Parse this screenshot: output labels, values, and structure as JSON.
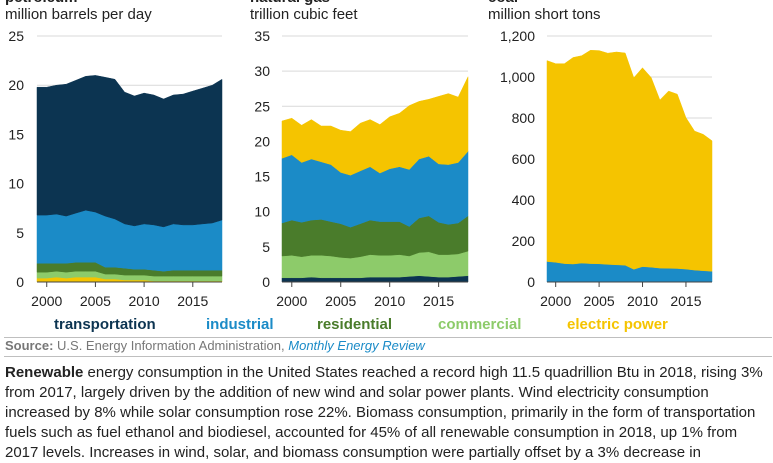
{
  "chart_data": [
    {
      "type": "area",
      "title": "petroleum",
      "subtitle": "million barrels per day",
      "x": [
        1999,
        2000,
        2001,
        2002,
        2003,
        2004,
        2005,
        2006,
        2007,
        2008,
        2009,
        2010,
        2011,
        2012,
        2013,
        2014,
        2015,
        2016,
        2017,
        2018
      ],
      "xticks": [
        2000,
        2005,
        2010,
        2015
      ],
      "ylim": [
        0,
        25
      ],
      "yticks": [
        0,
        5,
        10,
        15,
        20,
        25
      ],
      "ytick_labels": [
        "0",
        "5",
        "10",
        "15",
        "20",
        "25"
      ],
      "series": [
        {
          "name": "electric power",
          "color": "#f5c400",
          "values": [
            0.4,
            0.4,
            0.5,
            0.4,
            0.5,
            0.5,
            0.5,
            0.3,
            0.3,
            0.2,
            0.2,
            0.2,
            0.1,
            0.1,
            0.1,
            0.1,
            0.1,
            0.1,
            0.1,
            0.1
          ]
        },
        {
          "name": "commercial",
          "color": "#8dcb6a",
          "values": [
            0.6,
            0.6,
            0.6,
            0.6,
            0.6,
            0.6,
            0.6,
            0.5,
            0.5,
            0.5,
            0.5,
            0.5,
            0.5,
            0.5,
            0.5,
            0.5,
            0.5,
            0.5,
            0.5,
            0.5
          ]
        },
        {
          "name": "residential",
          "color": "#4a7c2b",
          "values": [
            0.9,
            0.9,
            0.8,
            0.9,
            0.9,
            0.9,
            0.9,
            0.7,
            0.7,
            0.7,
            0.6,
            0.6,
            0.6,
            0.5,
            0.6,
            0.6,
            0.6,
            0.6,
            0.6,
            0.6
          ]
        },
        {
          "name": "industrial",
          "color": "#1b8bc7",
          "values": [
            4.9,
            4.9,
            5.0,
            4.8,
            5.0,
            5.3,
            5.1,
            5.2,
            4.9,
            4.5,
            4.4,
            4.6,
            4.6,
            4.5,
            4.7,
            4.6,
            4.6,
            4.7,
            4.8,
            5.1
          ]
        },
        {
          "name": "transportation",
          "color": "#0c3451",
          "values": [
            13.0,
            13.0,
            13.1,
            13.4,
            13.5,
            13.6,
            13.9,
            14.1,
            14.2,
            13.4,
            13.2,
            13.3,
            13.2,
            13.0,
            13.1,
            13.3,
            13.6,
            13.8,
            14.0,
            14.3
          ]
        }
      ]
    },
    {
      "type": "area",
      "title": "natural gas",
      "subtitle": "trillion cubic feet",
      "x": [
        1999,
        2000,
        2001,
        2002,
        2003,
        2004,
        2005,
        2006,
        2007,
        2008,
        2009,
        2010,
        2011,
        2012,
        2013,
        2014,
        2015,
        2016,
        2017,
        2018
      ],
      "xticks": [
        2000,
        2005,
        2010,
        2015
      ],
      "ylim": [
        0,
        35
      ],
      "yticks": [
        0,
        5,
        10,
        15,
        20,
        25,
        30,
        35
      ],
      "ytick_labels": [
        "0",
        "5",
        "10",
        "15",
        "20",
        "25",
        "30",
        "35"
      ],
      "series": [
        {
          "name": "transportation",
          "color": "#0c3451",
          "values": [
            0.6,
            0.6,
            0.6,
            0.7,
            0.6,
            0.6,
            0.6,
            0.6,
            0.6,
            0.7,
            0.7,
            0.7,
            0.7,
            0.8,
            0.9,
            0.8,
            0.7,
            0.7,
            0.8,
            0.9
          ]
        },
        {
          "name": "commercial",
          "color": "#8dcb6a",
          "values": [
            3.1,
            3.2,
            3.0,
            3.1,
            3.2,
            3.1,
            2.9,
            2.8,
            3.0,
            3.2,
            3.1,
            3.1,
            3.2,
            2.9,
            3.3,
            3.5,
            3.2,
            3.2,
            3.2,
            3.5
          ]
        },
        {
          "name": "residential",
          "color": "#4a7c2b",
          "values": [
            4.7,
            5.0,
            4.9,
            5.0,
            5.1,
            4.9,
            4.8,
            4.4,
            4.7,
            4.9,
            4.8,
            4.8,
            4.7,
            4.2,
            4.9,
            5.1,
            4.6,
            4.3,
            4.4,
            5.0
          ]
        },
        {
          "name": "industrial",
          "color": "#1b8bc7",
          "values": [
            9.2,
            9.3,
            8.5,
            8.7,
            8.2,
            8.1,
            7.3,
            7.4,
            7.5,
            7.6,
            6.9,
            7.5,
            7.8,
            8.1,
            8.4,
            8.5,
            8.3,
            8.5,
            8.6,
            9.2
          ]
        },
        {
          "name": "electric power",
          "color": "#f5c400",
          "values": [
            5.3,
            5.2,
            5.3,
            5.6,
            5.1,
            5.5,
            6.0,
            6.2,
            6.8,
            6.7,
            6.9,
            7.4,
            7.6,
            9.1,
            8.2,
            8.1,
            9.6,
            10.1,
            9.3,
            10.6
          ]
        }
      ]
    },
    {
      "type": "area",
      "title": "coal",
      "subtitle": "million short tons",
      "x": [
        1999,
        2000,
        2001,
        2002,
        2003,
        2004,
        2005,
        2006,
        2007,
        2008,
        2009,
        2010,
        2011,
        2012,
        2013,
        2014,
        2015,
        2016,
        2017,
        2018
      ],
      "xticks": [
        2000,
        2005,
        2010,
        2015
      ],
      "ylim": [
        0,
        1200
      ],
      "yticks": [
        0,
        200,
        400,
        600,
        800,
        1000,
        1200
      ],
      "ytick_labels": [
        "0",
        "200",
        "400",
        "600",
        "800",
        "1,000",
        "1,200"
      ],
      "series": [
        {
          "name": "industrial",
          "color": "#1b8bc7",
          "values": [
            100,
            96,
            90,
            88,
            92,
            90,
            89,
            86,
            84,
            82,
            62,
            75,
            72,
            68,
            67,
            66,
            63,
            58,
            55,
            52
          ]
        },
        {
          "name": "electric power",
          "color": "#f5c400",
          "values": [
            980,
            969,
            975,
            1007,
            1012,
            1040,
            1040,
            1030,
            1038,
            1035,
            934,
            970,
            925,
            820,
            864,
            850,
            739,
            678,
            665,
            637
          ]
        }
      ]
    }
  ],
  "legend": [
    {
      "label": "transportation",
      "color": "#0c3451"
    },
    {
      "label": "industrial",
      "color": "#1b8bc7"
    },
    {
      "label": "residential",
      "color": "#4a7c2b"
    },
    {
      "label": "commercial",
      "color": "#8dcb6a"
    },
    {
      "label": "electric power",
      "color": "#f5c400"
    }
  ],
  "source": {
    "label": "Source:",
    "agency": "U.S. Energy Information Administration,",
    "publication": "Monthly Energy Review"
  },
  "body": {
    "lead": "Renewable",
    "text": "energy consumption in the United States reached a record high 11.5 quadrillion Btu in 2018, rising 3% from 2017, largely driven by the addition of new wind and solar power plants. Wind electricity consumption increased by 8% while solar consumption rose 22%. Biomass consumption, primarily in the form of transportation fuels such as fuel ethanol and biodiesel, accounted for 45% of all renewable consumption in 2018, up 1% from 2017 levels. Increases in wind, solar, and biomass consumption were partially offset by a 3% decrease in"
  }
}
